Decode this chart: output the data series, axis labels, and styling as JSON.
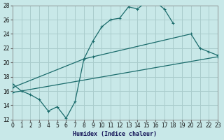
{
  "xlabel": "Humidex (Indice chaleur)",
  "xlim": [
    0,
    23
  ],
  "ylim": [
    12,
    28
  ],
  "xticks": [
    0,
    1,
    2,
    3,
    4,
    5,
    6,
    7,
    8,
    9,
    10,
    11,
    12,
    13,
    14,
    15,
    16,
    17,
    18,
    19,
    20,
    21,
    22,
    23
  ],
  "yticks": [
    12,
    14,
    16,
    18,
    20,
    22,
    24,
    26,
    28
  ],
  "bg_color": "#c8e8e8",
  "grid_color": "#aacccc",
  "line_color": "#1a6b6b",
  "curve1_x": [
    0,
    1,
    2,
    3,
    4,
    5,
    6,
    7,
    8,
    9,
    10,
    11,
    12,
    13,
    14,
    15,
    16,
    17,
    18
  ],
  "curve1_y": [
    17.0,
    16.0,
    15.5,
    14.8,
    13.2,
    13.8,
    12.2,
    14.5,
    20.5,
    23.0,
    25.0,
    26.0,
    26.2,
    27.8,
    27.5,
    28.5,
    28.5,
    27.5,
    25.5
  ],
  "line2_x": [
    0,
    8,
    9,
    20,
    21,
    22,
    23
  ],
  "line2_y": [
    16.5,
    20.5,
    20.8,
    24.0,
    22.0,
    21.5,
    21.0
  ],
  "line3_x": [
    0,
    23
  ],
  "line3_y": [
    15.8,
    20.8
  ]
}
